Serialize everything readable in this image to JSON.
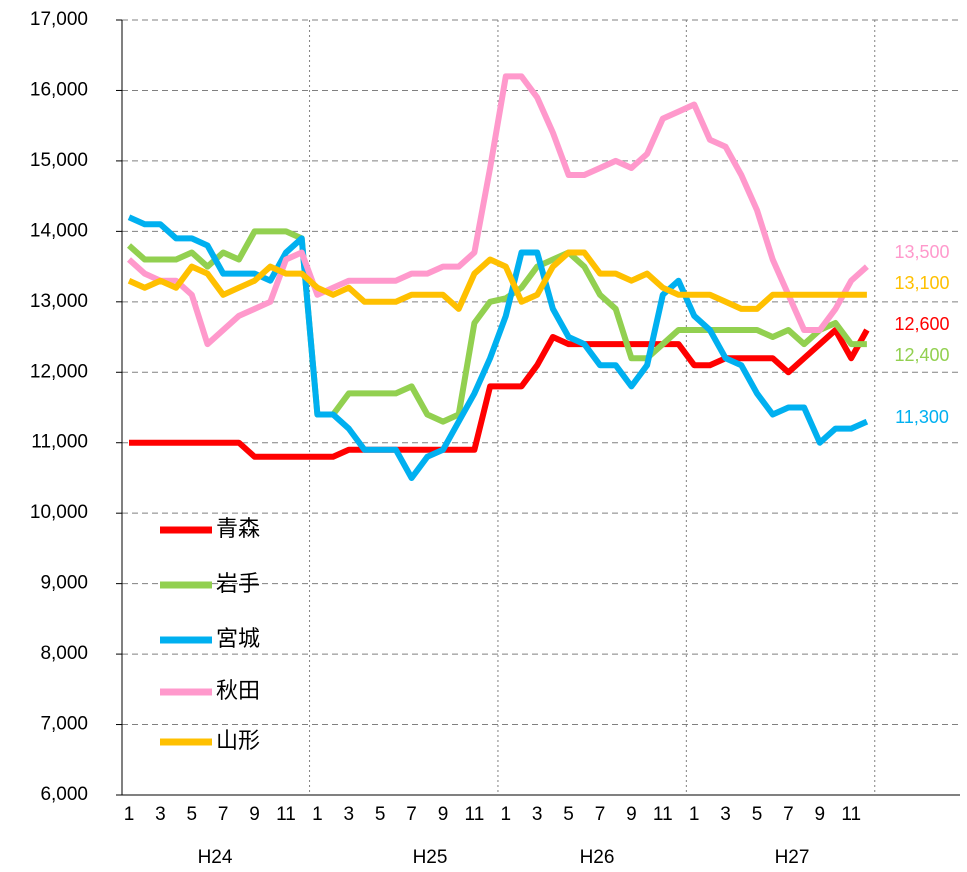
{
  "chart_data": {
    "type": "line",
    "categories": [
      "1",
      null,
      "3",
      null,
      "5",
      null,
      "7",
      null,
      "9",
      null,
      "11",
      null,
      "1",
      null,
      "3",
      null,
      "5",
      null,
      "7",
      null,
      "9",
      null,
      "11",
      null,
      "1",
      null,
      "3",
      null,
      "5",
      null,
      "7",
      null,
      "9",
      null,
      "11",
      null,
      "1",
      null,
      "3",
      null,
      "5",
      null,
      "7",
      null,
      "9",
      null,
      "11",
      null
    ],
    "year_labels": [
      "H24",
      "H25",
      "H26",
      "H27"
    ],
    "ylim": [
      6000,
      17000
    ],
    "yticks": [
      {
        "value": 6000,
        "label": "6,000"
      },
      {
        "value": 7000,
        "label": "7,000"
      },
      {
        "value": 8000,
        "label": "8,000"
      },
      {
        "value": 9000,
        "label": "9,000"
      },
      {
        "value": 10000,
        "label": "10,000"
      },
      {
        "value": 11000,
        "label": "11,000"
      },
      {
        "value": 12000,
        "label": "12,000"
      },
      {
        "value": 13000,
        "label": "13,000"
      },
      {
        "value": 14000,
        "label": "14,000"
      },
      {
        "value": 15000,
        "label": "15,000"
      },
      {
        "value": 16000,
        "label": "16,000"
      },
      {
        "value": 17000,
        "label": "17,000"
      }
    ],
    "grid": true,
    "legend": "lower left",
    "series": [
      {
        "name": "青森",
        "color": "#ff0000",
        "end_label": "12,600",
        "values": [
          11000,
          11000,
          11000,
          11000,
          11000,
          11000,
          11000,
          11000,
          10800,
          10800,
          10800,
          10800,
          10800,
          10800,
          10900,
          10900,
          10900,
          10900,
          10900,
          10900,
          10900,
          10900,
          10900,
          11800,
          11800,
          11800,
          12100,
          12500,
          12400,
          12400,
          12400,
          12400,
          12400,
          12400,
          12400,
          12400,
          12100,
          12100,
          12200,
          12200,
          12200,
          12200,
          12000,
          12200,
          12400,
          12600,
          12200,
          12600
        ]
      },
      {
        "name": "岩手",
        "color": "#92d050",
        "end_label": "12,400",
        "values": [
          13800,
          13600,
          13600,
          13600,
          13700,
          13500,
          13700,
          13600,
          14000,
          14000,
          14000,
          13900,
          11400,
          11400,
          11700,
          11700,
          11700,
          11700,
          11800,
          11400,
          11300,
          11400,
          12700,
          13000,
          13050,
          13200,
          13500,
          13600,
          13700,
          13500,
          13100,
          12900,
          12200,
          12200,
          12400,
          12600,
          12600,
          12600,
          12600,
          12600,
          12600,
          12500,
          12600,
          12400,
          12600,
          12700,
          12400,
          12400
        ]
      },
      {
        "name": "宮城",
        "color": "#00b0f0",
        "end_label": "11,300",
        "values": [
          14200,
          14100,
          14100,
          13900,
          13900,
          13800,
          13400,
          13400,
          13400,
          13300,
          13700,
          13900,
          11400,
          11400,
          11200,
          10900,
          10900,
          10900,
          10500,
          10800,
          10900,
          11300,
          11700,
          12200,
          12800,
          13700,
          13700,
          12900,
          12500,
          12400,
          12100,
          12100,
          11800,
          12100,
          13100,
          13300,
          12800,
          12600,
          12200,
          12100,
          11700,
          11400,
          11500,
          11500,
          11000,
          11200,
          11200,
          11300
        ]
      },
      {
        "name": "秋田",
        "color": "#ff99cc",
        "end_label": "13,500",
        "values": [
          13600,
          13400,
          13300,
          13300,
          13100,
          12400,
          12600,
          12800,
          12900,
          13000,
          13600,
          13700,
          13100,
          13200,
          13300,
          13300,
          13300,
          13300,
          13400,
          13400,
          13500,
          13500,
          13700,
          14900,
          16200,
          16200,
          15900,
          15400,
          14800,
          14800,
          14900,
          15000,
          14900,
          15100,
          15600,
          15700,
          15800,
          15300,
          15200,
          14800,
          14300,
          13600,
          13100,
          12600,
          12600,
          12900,
          13300,
          13500
        ]
      },
      {
        "name": "山形",
        "color": "#ffc000",
        "end_label": "13,100",
        "values": [
          13300,
          13200,
          13300,
          13200,
          13500,
          13400,
          13100,
          13200,
          13300,
          13500,
          13400,
          13400,
          13200,
          13100,
          13200,
          13000,
          13000,
          13000,
          13100,
          13100,
          13100,
          12900,
          13400,
          13600,
          13500,
          13000,
          13100,
          13500,
          13700,
          13700,
          13400,
          13400,
          13300,
          13400,
          13200,
          13100,
          13100,
          13100,
          13000,
          12900,
          12900,
          13100,
          13100,
          13100,
          13100,
          13100,
          13100,
          13100
        ]
      }
    ]
  }
}
